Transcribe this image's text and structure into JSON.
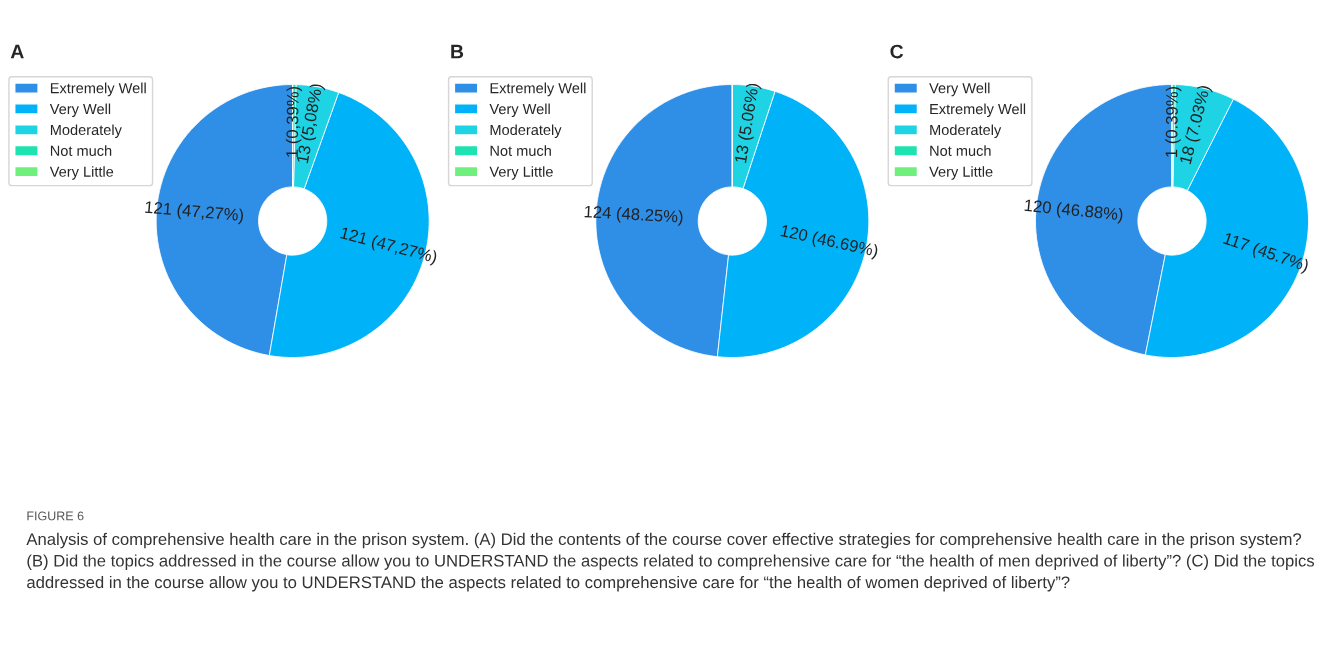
{
  "chart_data": [
    {
      "type": "donut",
      "title": "A",
      "categories": [
        "Extremely Well",
        "Very Well",
        "Moderately",
        "Not much",
        "Very Little"
      ],
      "values": [
        121,
        121,
        13,
        1,
        0
      ],
      "colors": [
        "#2f8fe6",
        "#00b2f7",
        "#1ed3e3",
        "#1ee3b0",
        "#6ff07c"
      ],
      "value_labels": [
        "121 (47,27%)",
        "121 (47,27%)",
        "13 (5,08%)",
        "1 (0,39%)",
        null
      ],
      "legend": "left",
      "annotations": [
        "FIGURE 6",
        "Analysis of comprehensive health care in the prison system. (A) Did the contents of the course cover effective strategies for comprehensive health care in the prison system? (B) Did the topics addressed in the course allow you to UNDERSTAND the aspects related to comprehensive care for “the health of men deprived of liberty”? (C) Did the topics addressed in the course allow you to UNDERSTAND the aspects related to comprehensive care for “the health of women deprived of liberty”?"
      ]
    },
    {
      "type": "donut",
      "title": "B",
      "categories": [
        "Extremely Well",
        "Very Well",
        "Moderately",
        "Not much",
        "Very Little"
      ],
      "values": [
        124,
        120,
        13,
        0,
        0
      ],
      "colors": [
        "#2f8fe6",
        "#00b2f7",
        "#1ed3e3",
        "#1ee3b0",
        "#6ff07c"
      ],
      "value_labels": [
        "124 (48.25%)",
        "120 (46.69%)",
        "13 (5.06%)",
        null,
        null
      ],
      "legend": "left"
    },
    {
      "type": "donut",
      "title": "C",
      "categories": [
        "Very Well",
        "Extremely Well",
        "Moderately",
        "Not much",
        "Very Little"
      ],
      "values": [
        120,
        117,
        18,
        1,
        0
      ],
      "colors": [
        "#2f8fe6",
        "#00b2f7",
        "#1ed3e3",
        "#1ee3b0",
        "#6ff07c"
      ],
      "value_labels": [
        "120 (46.88%)",
        "117 (45.7%)",
        "18 (7.03%)",
        "1 (0.39%)",
        null
      ],
      "legend": "left"
    }
  ]
}
